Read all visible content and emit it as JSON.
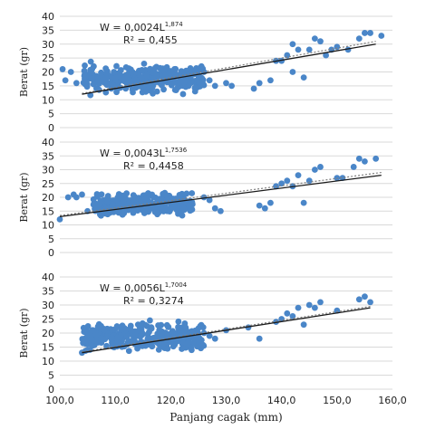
{
  "colors": {
    "point": "#4a86c8",
    "trend": "#1a1a1a",
    "fit": "#7f7f7f",
    "grid": "#d9d9d9"
  },
  "chart_data": [
    {
      "type": "scatter",
      "ylabel": "Berat (gr)",
      "xlabel": "",
      "ylim": [
        0,
        40
      ],
      "xlim": [
        100,
        160
      ],
      "yticks": [
        "0",
        "5",
        "10",
        "15",
        "20",
        "25",
        "30",
        "35",
        "40"
      ],
      "xticks": [],
      "equation": {
        "base": "W = 0,0024L",
        "exp": "1,874"
      },
      "r2": "R² = 0,455",
      "trend": [
        [
          104,
          12
        ],
        [
          157,
          30
        ]
      ],
      "power_fit": [
        [
          104,
          12.3
        ],
        [
          157,
          31
        ]
      ],
      "cluster": {
        "x": [
          104,
          126
        ],
        "y": [
          11,
          24
        ],
        "count": 320,
        "seed": 11
      },
      "points": [
        [
          101,
          17
        ],
        [
          100.5,
          21
        ],
        [
          102,
          20
        ],
        [
          103,
          16
        ],
        [
          126,
          20
        ],
        [
          127,
          17
        ],
        [
          128,
          15
        ],
        [
          130,
          16
        ],
        [
          131,
          15
        ],
        [
          135,
          14
        ],
        [
          136,
          16
        ],
        [
          138,
          17
        ],
        [
          139,
          24
        ],
        [
          140,
          24
        ],
        [
          141,
          26
        ],
        [
          142,
          30
        ],
        [
          143,
          28
        ],
        [
          142,
          20
        ],
        [
          144,
          18
        ],
        [
          145,
          28
        ],
        [
          146,
          32
        ],
        [
          147,
          31
        ],
        [
          148,
          26
        ],
        [
          149,
          28
        ],
        [
          150,
          29
        ],
        [
          152,
          28
        ],
        [
          154,
          32
        ],
        [
          155,
          34
        ],
        [
          156,
          34
        ],
        [
          158,
          33
        ]
      ]
    },
    {
      "type": "scatter",
      "ylabel": "Berat (gr)",
      "xlabel": "",
      "ylim": [
        0,
        40
      ],
      "xlim": [
        100,
        160
      ],
      "yticks": [
        "0",
        "5",
        "10",
        "15",
        "20",
        "25",
        "30",
        "35",
        "40"
      ],
      "xticks": [],
      "equation": {
        "base": "W = 0,0043L",
        "exp": "1,7536"
      },
      "r2": "R² = 0,4458",
      "trend": [
        [
          100,
          13
        ],
        [
          158,
          28
        ]
      ],
      "power_fit": [
        [
          100,
          13.4
        ],
        [
          158,
          29
        ]
      ],
      "cluster": {
        "x": [
          106,
          124
        ],
        "y": [
          12,
          23
        ],
        "count": 300,
        "seed": 23
      },
      "points": [
        [
          100,
          12
        ],
        [
          101.5,
          20
        ],
        [
          102.5,
          21
        ],
        [
          103,
          20
        ],
        [
          104,
          21
        ],
        [
          105,
          15
        ],
        [
          126,
          20
        ],
        [
          127,
          19
        ],
        [
          128,
          16
        ],
        [
          129,
          15
        ],
        [
          136,
          17
        ],
        [
          137,
          16
        ],
        [
          138,
          18
        ],
        [
          139,
          24
        ],
        [
          140,
          25
        ],
        [
          141,
          26
        ],
        [
          142,
          24
        ],
        [
          143,
          28
        ],
        [
          144,
          18
        ],
        [
          145,
          26
        ],
        [
          146,
          30
        ],
        [
          147,
          31
        ],
        [
          150,
          27
        ],
        [
          151,
          27
        ],
        [
          153,
          31
        ],
        [
          154,
          34
        ],
        [
          155,
          33
        ],
        [
          157,
          34
        ]
      ]
    },
    {
      "type": "scatter",
      "ylabel": "Berat (gr)",
      "xlabel": "Panjang cagak (mm)",
      "ylim": [
        0,
        40
      ],
      "xlim": [
        100,
        160
      ],
      "yticks": [
        "0",
        "5",
        "10",
        "15",
        "20",
        "25",
        "30",
        "35",
        "40"
      ],
      "xticks": [
        "100,0",
        "110,0",
        "120,0",
        "130,0",
        "140,0",
        "150,0",
        "160,0"
      ],
      "equation": {
        "base": "W = 0,0056L",
        "exp": "1,7004"
      },
      "r2": "R² = 0,3274",
      "trend": [
        [
          104,
          13
        ],
        [
          156,
          29
        ]
      ],
      "power_fit": [
        [
          104,
          13.3
        ],
        [
          156,
          29.5
        ]
      ],
      "cluster": {
        "x": [
          104,
          126
        ],
        "y": [
          12,
          25
        ],
        "count": 330,
        "seed": 37
      },
      "points": [
        [
          104,
          13
        ],
        [
          105,
          14
        ],
        [
          106,
          21
        ],
        [
          107,
          22
        ],
        [
          126,
          20
        ],
        [
          127,
          19
        ],
        [
          128,
          18
        ],
        [
          130,
          21
        ],
        [
          134,
          22
        ],
        [
          136,
          18
        ],
        [
          139,
          24
        ],
        [
          140,
          25
        ],
        [
          141,
          27
        ],
        [
          142,
          26
        ],
        [
          143,
          29
        ],
        [
          144,
          23
        ],
        [
          145,
          30
        ],
        [
          146,
          29
        ],
        [
          147,
          31
        ],
        [
          150,
          28
        ],
        [
          154,
          32
        ],
        [
          155,
          33
        ],
        [
          156,
          31
        ]
      ]
    }
  ]
}
